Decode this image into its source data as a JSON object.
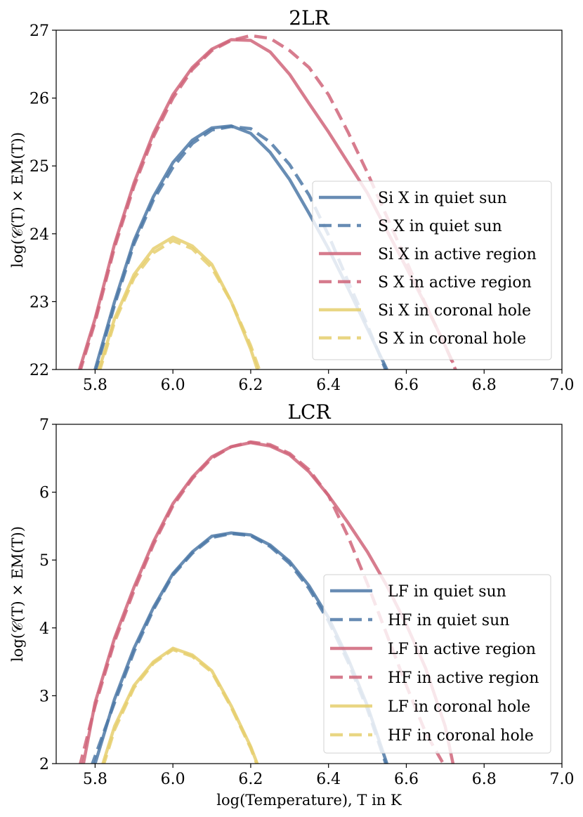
{
  "colors": {
    "blue": "#4e79a7",
    "red": "#d0657a",
    "yellow": "#e6cf6e"
  },
  "chart_data": [
    {
      "type": "line",
      "title": "2LR",
      "xlabel": "",
      "ylabel": "log(𝒞(T) × EM(T))",
      "xlim": [
        5.7,
        7.0
      ],
      "ylim": [
        22,
        27
      ],
      "xticks": [
        "5.8",
        "6.0",
        "6.2",
        "6.4",
        "6.6",
        "6.8",
        "7.0"
      ],
      "yticks": [
        "22",
        "23",
        "24",
        "25",
        "26",
        "27"
      ],
      "legend_position": "center-right",
      "series": [
        {
          "name": "Si X in quiet sun",
          "color": "blue",
          "dash": false,
          "x": [
            5.8,
            5.85,
            5.9,
            5.95,
            6.0,
            6.05,
            6.1,
            6.15,
            6.2,
            6.25,
            6.3,
            6.35,
            6.4,
            6.45,
            6.5,
            6.55
          ],
          "y": [
            22.0,
            23.0,
            23.9,
            24.55,
            25.05,
            25.38,
            25.56,
            25.59,
            25.48,
            25.2,
            24.8,
            24.3,
            23.78,
            23.2,
            22.6,
            22.0
          ]
        },
        {
          "name": "S X in quiet sun",
          "color": "blue",
          "dash": true,
          "x": [
            5.8,
            5.85,
            5.9,
            5.95,
            6.0,
            6.05,
            6.1,
            6.15,
            6.2,
            6.25,
            6.3,
            6.35,
            6.4,
            6.45,
            6.5,
            6.55
          ],
          "y": [
            21.95,
            22.95,
            23.85,
            24.5,
            24.98,
            25.33,
            25.53,
            25.58,
            25.55,
            25.35,
            25.02,
            24.57,
            23.98,
            23.3,
            22.65,
            21.95
          ]
        },
        {
          "name": "Si X in active region",
          "color": "red",
          "dash": false,
          "x": [
            5.76,
            5.8,
            5.85,
            5.9,
            5.95,
            6.0,
            6.05,
            6.1,
            6.15,
            6.2,
            6.25,
            6.3,
            6.35,
            6.4,
            6.45,
            6.5,
            6.55,
            6.6,
            6.65,
            6.7,
            6.72
          ],
          "y": [
            22.0,
            22.75,
            23.85,
            24.75,
            25.48,
            26.05,
            26.45,
            26.72,
            26.86,
            26.85,
            26.68,
            26.35,
            25.92,
            25.5,
            25.05,
            24.6,
            24.05,
            23.5,
            22.95,
            22.35,
            22.1
          ]
        },
        {
          "name": "S X in active region",
          "color": "red",
          "dash": true,
          "x": [
            5.76,
            5.8,
            5.85,
            5.9,
            5.95,
            6.0,
            6.05,
            6.1,
            6.15,
            6.2,
            6.25,
            6.3,
            6.35,
            6.4,
            6.45,
            6.5,
            6.55,
            6.6,
            6.65,
            6.7,
            6.73
          ],
          "y": [
            21.95,
            22.7,
            23.8,
            24.7,
            25.43,
            26.0,
            26.42,
            26.7,
            26.85,
            26.92,
            26.88,
            26.7,
            26.45,
            26.05,
            25.5,
            24.9,
            24.25,
            23.6,
            22.95,
            22.35,
            21.95
          ]
        },
        {
          "name": "Si X in coronal hole",
          "color": "yellow",
          "dash": false,
          "x": [
            5.81,
            5.85,
            5.9,
            5.95,
            6.0,
            6.05,
            6.1,
            6.15,
            6.2,
            6.22
          ],
          "y": [
            22.0,
            22.75,
            23.4,
            23.78,
            23.95,
            23.82,
            23.55,
            23.0,
            22.3,
            21.95
          ]
        },
        {
          "name": "S X in coronal hole",
          "color": "yellow",
          "dash": true,
          "x": [
            5.81,
            5.85,
            5.9,
            5.95,
            6.0,
            6.05,
            6.1,
            6.15,
            6.2,
            6.225
          ],
          "y": [
            21.95,
            22.7,
            23.35,
            23.72,
            23.9,
            23.78,
            23.5,
            23.0,
            22.35,
            21.95
          ]
        }
      ]
    },
    {
      "type": "line",
      "title": "LCR",
      "xlabel": "log(Temperature), T in K",
      "ylabel": "log(𝒞(T) × EM(T))",
      "xlim": [
        5.7,
        7.0
      ],
      "ylim": [
        2,
        7
      ],
      "xticks": [
        "5.8",
        "6.0",
        "6.2",
        "6.4",
        "6.6",
        "6.8",
        "7.0"
      ],
      "yticks": [
        "2",
        "3",
        "4",
        "5",
        "6",
        "7"
      ],
      "legend_position": "lower-right",
      "series": [
        {
          "name": "LF in quiet sun",
          "color": "blue",
          "dash": false,
          "x": [
            5.8,
            5.85,
            5.9,
            5.95,
            6.0,
            6.05,
            6.1,
            6.15,
            6.2,
            6.25,
            6.3,
            6.35,
            6.4,
            6.45,
            6.5,
            6.55
          ],
          "y": [
            2.0,
            2.95,
            3.7,
            4.3,
            4.8,
            5.12,
            5.35,
            5.4,
            5.37,
            5.22,
            4.98,
            4.62,
            4.15,
            3.55,
            2.85,
            2.0
          ]
        },
        {
          "name": "HF in quiet sun",
          "color": "blue",
          "dash": true,
          "x": [
            5.79,
            5.85,
            5.9,
            5.95,
            6.0,
            6.05,
            6.1,
            6.15,
            6.2,
            6.25,
            6.3,
            6.35,
            6.4,
            6.45,
            6.5,
            6.55
          ],
          "y": [
            1.95,
            2.9,
            3.65,
            4.27,
            4.78,
            5.1,
            5.33,
            5.39,
            5.36,
            5.2,
            4.95,
            4.58,
            4.1,
            3.5,
            2.8,
            1.95
          ]
        },
        {
          "name": "LF in active region",
          "color": "red",
          "dash": false,
          "x": [
            5.77,
            5.8,
            5.85,
            5.9,
            5.95,
            6.0,
            6.05,
            6.1,
            6.15,
            6.2,
            6.25,
            6.3,
            6.35,
            6.4,
            6.45,
            6.5,
            6.55,
            6.6,
            6.65,
            6.7,
            6.72
          ],
          "y": [
            2.0,
            2.9,
            3.85,
            4.6,
            5.27,
            5.83,
            6.22,
            6.52,
            6.67,
            6.73,
            6.68,
            6.55,
            6.3,
            5.95,
            5.55,
            5.12,
            4.62,
            4.05,
            3.4,
            2.55,
            2.0
          ]
        },
        {
          "name": "HF in active region",
          "color": "red",
          "dash": true,
          "x": [
            5.76,
            5.8,
            5.85,
            5.9,
            5.95,
            6.0,
            6.05,
            6.1,
            6.15,
            6.2,
            6.25,
            6.3,
            6.35,
            6.4,
            6.45,
            6.5,
            6.55,
            6.6,
            6.65,
            6.7
          ],
          "y": [
            1.95,
            2.85,
            3.8,
            4.55,
            5.23,
            5.8,
            6.2,
            6.5,
            6.67,
            6.74,
            6.7,
            6.57,
            6.33,
            5.95,
            5.35,
            4.65,
            3.9,
            3.15,
            2.45,
            1.95
          ]
        },
        {
          "name": "LF in coronal hole",
          "color": "yellow",
          "dash": false,
          "x": [
            5.82,
            5.85,
            5.9,
            5.95,
            6.0,
            6.05,
            6.1,
            6.15,
            6.2,
            6.22
          ],
          "y": [
            2.0,
            2.55,
            3.15,
            3.5,
            3.7,
            3.6,
            3.37,
            2.85,
            2.25,
            1.95
          ]
        },
        {
          "name": "HF in coronal hole",
          "color": "yellow",
          "dash": true,
          "x": [
            5.82,
            5.85,
            5.9,
            5.95,
            6.0,
            6.05,
            6.1,
            6.15,
            6.2,
            6.22
          ],
          "y": [
            1.95,
            2.5,
            3.12,
            3.48,
            3.68,
            3.58,
            3.35,
            2.83,
            2.23,
            1.93
          ]
        }
      ]
    }
  ]
}
